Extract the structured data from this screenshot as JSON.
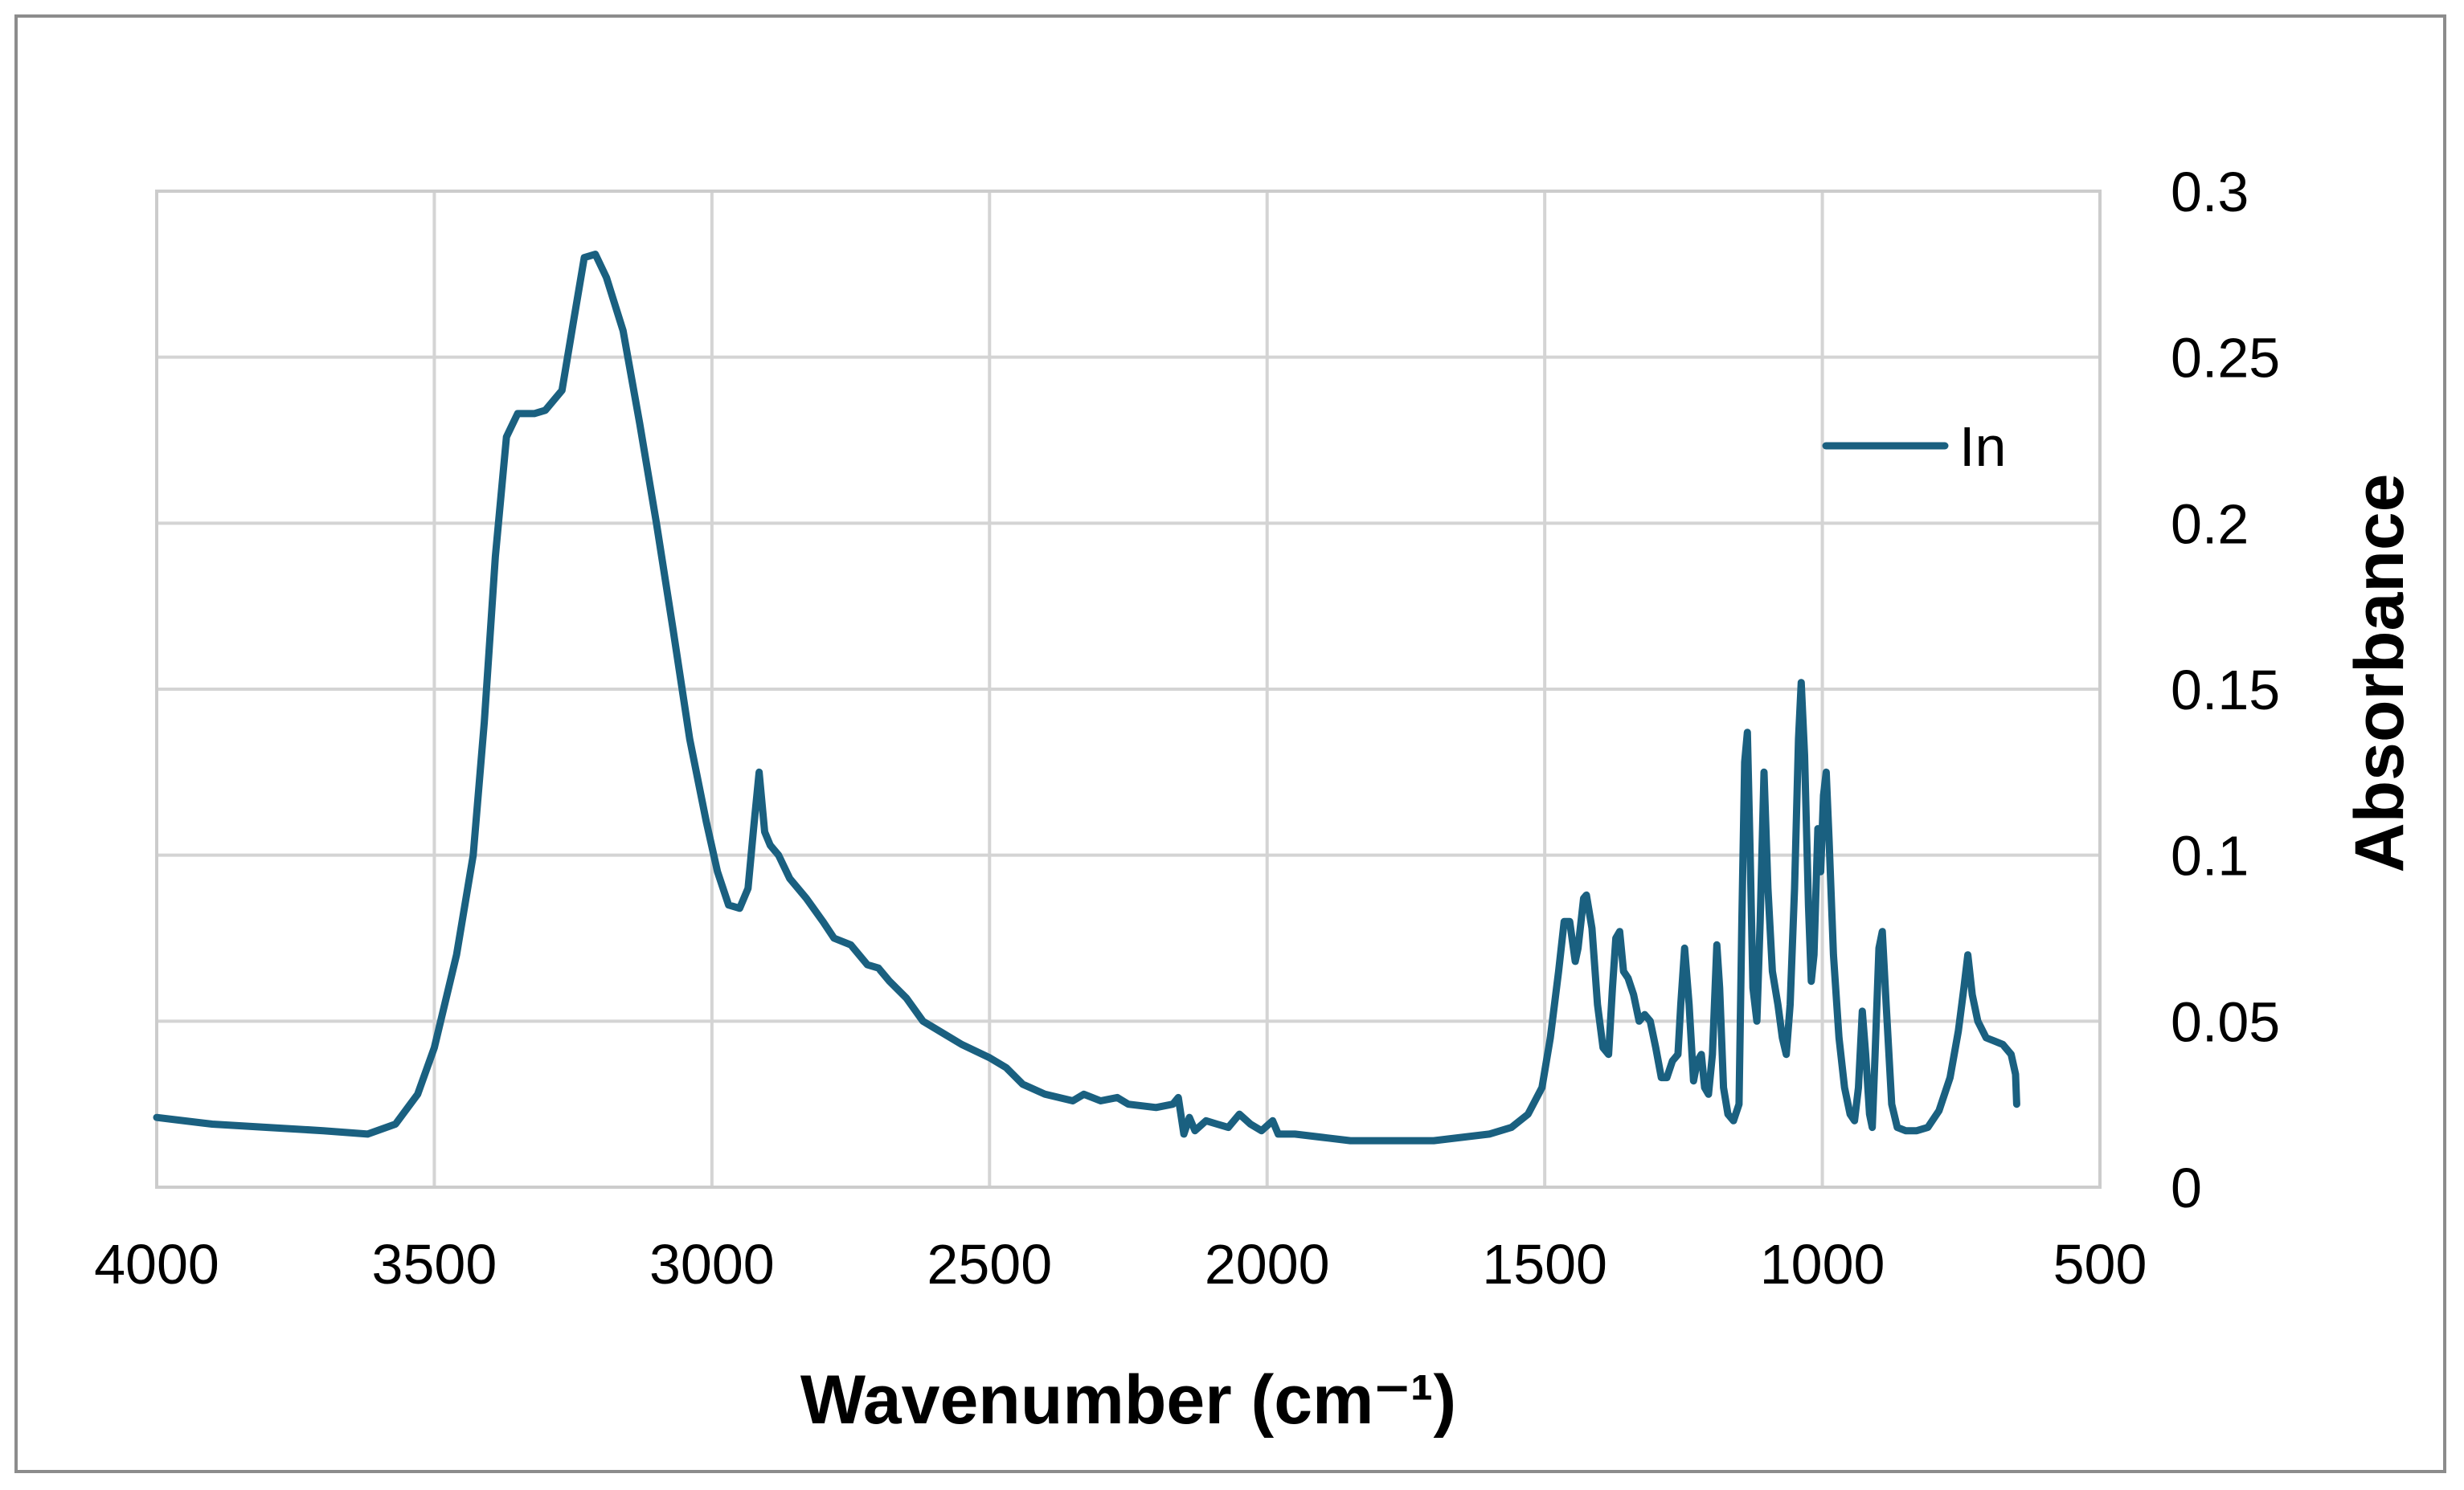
{
  "chart_data": {
    "type": "line",
    "title": "",
    "xlabel": "Wavenumber (cm⁻¹)",
    "ylabel": "Absorbance",
    "xlim": [
      4000,
      500
    ],
    "ylim": [
      0,
      0.3
    ],
    "x_reversed": true,
    "y_axis_side": "right",
    "x_ticks": [
      4000,
      3500,
      3000,
      2500,
      2000,
      1500,
      1000,
      500
    ],
    "x_tick_labels": [
      "4000",
      "3500",
      "3000",
      "2500",
      "2000",
      "1500",
      "1000",
      "500"
    ],
    "y_ticks": [
      0,
      0.05,
      0.1,
      0.15,
      0.2,
      0.25,
      0.3
    ],
    "y_tick_labels": [
      "0",
      "0.05",
      "0.1",
      "0.15",
      "0.2",
      "0.25",
      "0.3"
    ],
    "grid": true,
    "legend_position": "top-right",
    "series": [
      {
        "name": "In",
        "color": "#1a6080",
        "points": [
          [
            4000,
            0.021
          ],
          [
            3900,
            0.019
          ],
          [
            3800,
            0.018
          ],
          [
            3700,
            0.017
          ],
          [
            3620,
            0.016
          ],
          [
            3570,
            0.019
          ],
          [
            3530,
            0.028
          ],
          [
            3500,
            0.042
          ],
          [
            3460,
            0.07
          ],
          [
            3430,
            0.1
          ],
          [
            3410,
            0.14
          ],
          [
            3390,
            0.19
          ],
          [
            3370,
            0.226
          ],
          [
            3350,
            0.233
          ],
          [
            3320,
            0.233
          ],
          [
            3300,
            0.234
          ],
          [
            3270,
            0.24
          ],
          [
            3250,
            0.26
          ],
          [
            3230,
            0.28
          ],
          [
            3210,
            0.281
          ],
          [
            3190,
            0.274
          ],
          [
            3160,
            0.258
          ],
          [
            3130,
            0.23
          ],
          [
            3100,
            0.2
          ],
          [
            3070,
            0.168
          ],
          [
            3040,
            0.135
          ],
          [
            3010,
            0.11
          ],
          [
            2990,
            0.095
          ],
          [
            2970,
            0.085
          ],
          [
            2950,
            0.084
          ],
          [
            2935,
            0.09
          ],
          [
            2925,
            0.108
          ],
          [
            2915,
            0.125
          ],
          [
            2905,
            0.107
          ],
          [
            2895,
            0.103
          ],
          [
            2880,
            0.1
          ],
          [
            2860,
            0.093
          ],
          [
            2830,
            0.087
          ],
          [
            2800,
            0.08
          ],
          [
            2780,
            0.075
          ],
          [
            2750,
            0.073
          ],
          [
            2720,
            0.067
          ],
          [
            2700,
            0.066
          ],
          [
            2680,
            0.062
          ],
          [
            2650,
            0.057
          ],
          [
            2620,
            0.05
          ],
          [
            2580,
            0.046
          ],
          [
            2550,
            0.043
          ],
          [
            2500,
            0.039
          ],
          [
            2470,
            0.036
          ],
          [
            2440,
            0.031
          ],
          [
            2400,
            0.028
          ],
          [
            2350,
            0.026
          ],
          [
            2330,
            0.028
          ],
          [
            2300,
            0.026
          ],
          [
            2270,
            0.027
          ],
          [
            2250,
            0.025
          ],
          [
            2200,
            0.024
          ],
          [
            2170,
            0.025
          ],
          [
            2160,
            0.027
          ],
          [
            2150,
            0.016
          ],
          [
            2140,
            0.021
          ],
          [
            2130,
            0.017
          ],
          [
            2110,
            0.02
          ],
          [
            2090,
            0.019
          ],
          [
            2070,
            0.018
          ],
          [
            2050,
            0.022
          ],
          [
            2030,
            0.019
          ],
          [
            2010,
            0.017
          ],
          [
            1990,
            0.02
          ],
          [
            1980,
            0.016
          ],
          [
            1950,
            0.016
          ],
          [
            1900,
            0.015
          ],
          [
            1850,
            0.014
          ],
          [
            1800,
            0.014
          ],
          [
            1700,
            0.014
          ],
          [
            1650,
            0.015
          ],
          [
            1600,
            0.016
          ],
          [
            1560,
            0.018
          ],
          [
            1530,
            0.022
          ],
          [
            1505,
            0.03
          ],
          [
            1490,
            0.045
          ],
          [
            1475,
            0.065
          ],
          [
            1465,
            0.08
          ],
          [
            1455,
            0.08
          ],
          [
            1445,
            0.068
          ],
          [
            1440,
            0.072
          ],
          [
            1430,
            0.087
          ],
          [
            1425,
            0.088
          ],
          [
            1415,
            0.078
          ],
          [
            1405,
            0.055
          ],
          [
            1395,
            0.042
          ],
          [
            1385,
            0.04
          ],
          [
            1378,
            0.06
          ],
          [
            1372,
            0.075
          ],
          [
            1365,
            0.077
          ],
          [
            1358,
            0.065
          ],
          [
            1350,
            0.063
          ],
          [
            1340,
            0.058
          ],
          [
            1330,
            0.05
          ],
          [
            1320,
            0.052
          ],
          [
            1310,
            0.05
          ],
          [
            1300,
            0.042
          ],
          [
            1290,
            0.033
          ],
          [
            1280,
            0.033
          ],
          [
            1270,
            0.038
          ],
          [
            1260,
            0.04
          ],
          [
            1255,
            0.055
          ],
          [
            1248,
            0.072
          ],
          [
            1240,
            0.055
          ],
          [
            1232,
            0.032
          ],
          [
            1225,
            0.038
          ],
          [
            1218,
            0.04
          ],
          [
            1212,
            0.03
          ],
          [
            1205,
            0.028
          ],
          [
            1198,
            0.04
          ],
          [
            1190,
            0.073
          ],
          [
            1185,
            0.06
          ],
          [
            1178,
            0.03
          ],
          [
            1170,
            0.022
          ],
          [
            1160,
            0.02
          ],
          [
            1150,
            0.025
          ],
          [
            1145,
            0.08
          ],
          [
            1140,
            0.128
          ],
          [
            1135,
            0.137
          ],
          [
            1130,
            0.1
          ],
          [
            1125,
            0.06
          ],
          [
            1118,
            0.05
          ],
          [
            1112,
            0.08
          ],
          [
            1105,
            0.125
          ],
          [
            1098,
            0.09
          ],
          [
            1090,
            0.065
          ],
          [
            1080,
            0.055
          ],
          [
            1072,
            0.045
          ],
          [
            1065,
            0.04
          ],
          [
            1058,
            0.055
          ],
          [
            1050,
            0.09
          ],
          [
            1043,
            0.135
          ],
          [
            1038,
            0.152
          ],
          [
            1032,
            0.13
          ],
          [
            1025,
            0.085
          ],
          [
            1020,
            0.062
          ],
          [
            1015,
            0.07
          ],
          [
            1008,
            0.108
          ],
          [
            1003,
            0.095
          ],
          [
            998,
            0.118
          ],
          [
            993,
            0.125
          ],
          [
            988,
            0.105
          ],
          [
            980,
            0.07
          ],
          [
            970,
            0.045
          ],
          [
            960,
            0.03
          ],
          [
            950,
            0.022
          ],
          [
            942,
            0.02
          ],
          [
            935,
            0.03
          ],
          [
            928,
            0.053
          ],
          [
            922,
            0.04
          ],
          [
            915,
            0.022
          ],
          [
            910,
            0.018
          ],
          [
            905,
            0.04
          ],
          [
            898,
            0.072
          ],
          [
            892,
            0.077
          ],
          [
            885,
            0.055
          ],
          [
            875,
            0.025
          ],
          [
            865,
            0.018
          ],
          [
            850,
            0.017
          ],
          [
            830,
            0.017
          ],
          [
            810,
            0.018
          ],
          [
            790,
            0.023
          ],
          [
            770,
            0.033
          ],
          [
            755,
            0.047
          ],
          [
            745,
            0.06
          ],
          [
            738,
            0.07
          ],
          [
            730,
            0.058
          ],
          [
            720,
            0.05
          ],
          [
            705,
            0.045
          ],
          [
            690,
            0.044
          ],
          [
            675,
            0.043
          ],
          [
            660,
            0.04
          ],
          [
            652,
            0.034
          ],
          [
            650,
            0.025
          ]
        ]
      }
    ]
  }
}
